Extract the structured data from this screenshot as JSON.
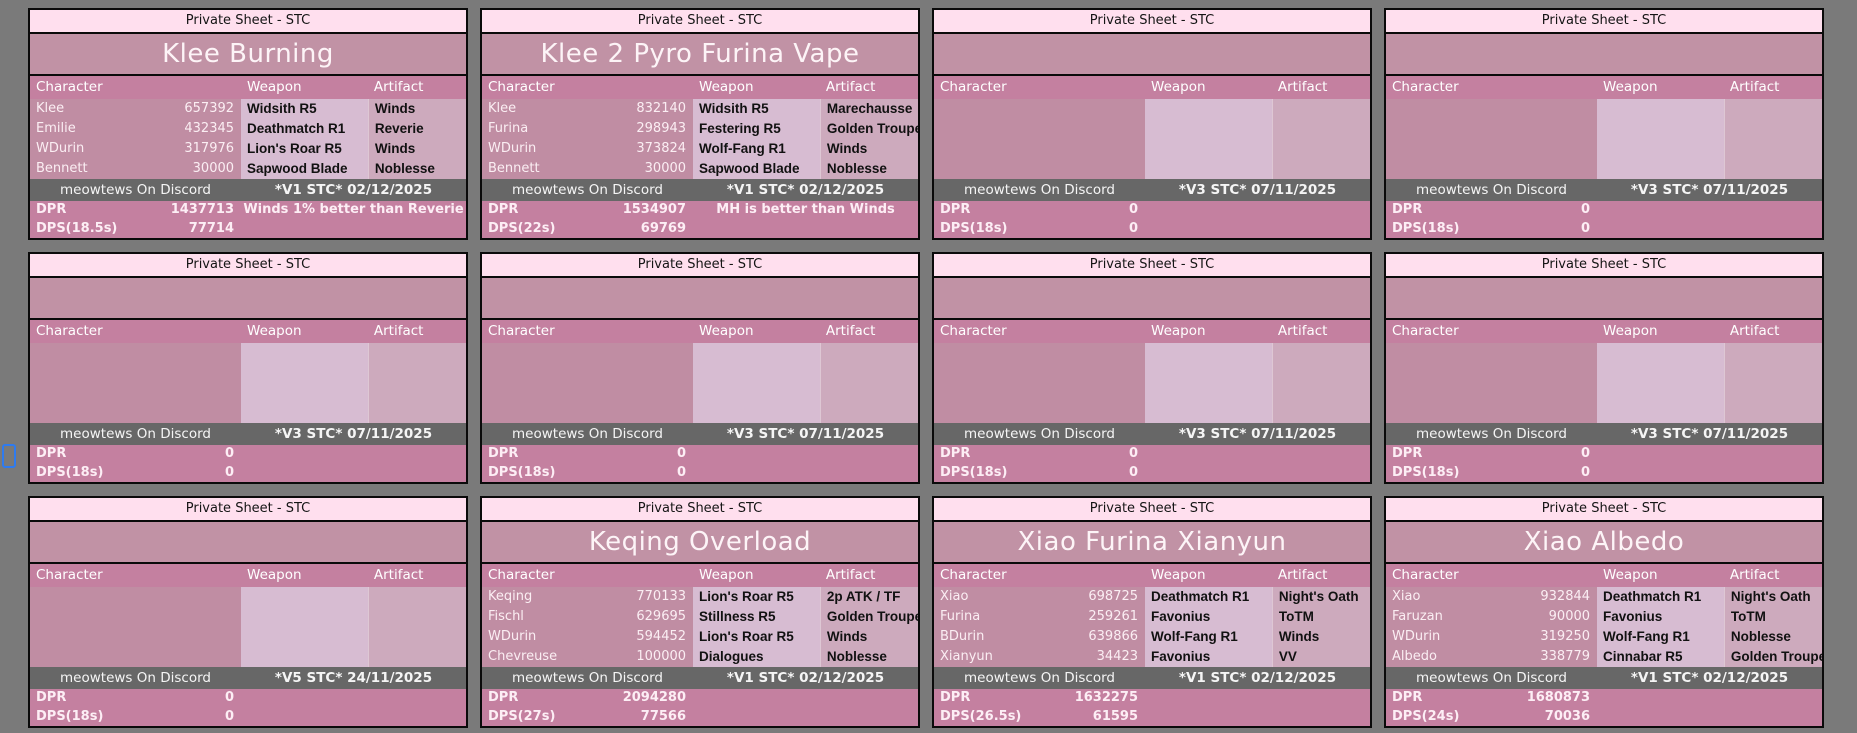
{
  "colors": {
    "bg": "#7a7a7a",
    "line": "#0a0a0a",
    "topbar": "#ffdfee",
    "titlebg": "#c192a5",
    "pinkstrong": "#c480a0",
    "charcol": "#c08da3",
    "weaponcol": "#d7bcd2",
    "artifactcol": "#cdaabd",
    "footerbg": "#676767",
    "cursor": "#2e7bf0"
  },
  "labels": {
    "sheet_header": "Private Sheet - STC",
    "col_character": "Character",
    "col_weapon": "Weapon",
    "col_artifact": "Artifact",
    "footer_left": "meowtews On Discord",
    "dpr_label": "DPR"
  },
  "cards": [
    {
      "title": "Klee Burning",
      "rows": [
        {
          "name": "Klee",
          "value": "657392",
          "weapon": "Widsith R5",
          "artifact": "Winds"
        },
        {
          "name": "Emilie",
          "value": "432345",
          "weapon": "Deathmatch R1",
          "artifact": "Reverie"
        },
        {
          "name": "WDurin",
          "value": "317976",
          "weapon": "Lion's Roar R5",
          "artifact": "Winds"
        },
        {
          "name": "Bennett",
          "value": "30000",
          "weapon": "Sapwood Blade",
          "artifact": "Noblesse"
        }
      ],
      "version": "*V1 STC* 02/12/2025",
      "dpr": "1437713",
      "dpr_note": "Winds 1% better than Reverie",
      "dps_label": "DPS(18.5s)",
      "dps": "77714"
    },
    {
      "title": "Klee 2 Pyro Furina Vape",
      "rows": [
        {
          "name": "Klee",
          "value": "832140",
          "weapon": "Widsith R5",
          "artifact": "Marechausse"
        },
        {
          "name": "Furina",
          "value": "298943",
          "weapon": "Festering R5",
          "artifact": "Golden Troupe"
        },
        {
          "name": "WDurin",
          "value": "373824",
          "weapon": "Wolf-Fang R1",
          "artifact": "Winds"
        },
        {
          "name": "Bennett",
          "value": "30000",
          "weapon": "Sapwood Blade",
          "artifact": "Noblesse"
        }
      ],
      "version": "*V1 STC* 02/12/2025",
      "dpr": "1534907",
      "dpr_note": "MH is better than Winds",
      "dps_label": "DPS(22s)",
      "dps": "69769"
    },
    {
      "title": "",
      "rows": [
        {
          "name": "",
          "value": "",
          "weapon": "",
          "artifact": ""
        },
        {
          "name": "",
          "value": "",
          "weapon": "",
          "artifact": ""
        },
        {
          "name": "",
          "value": "",
          "weapon": "",
          "artifact": ""
        },
        {
          "name": "",
          "value": "",
          "weapon": "",
          "artifact": ""
        }
      ],
      "version": "*V3 STC* 07/11/2025",
      "dpr": "0",
      "dpr_note": "",
      "dps_label": "DPS(18s)",
      "dps": "0"
    },
    {
      "title": "",
      "rows": [
        {
          "name": "",
          "value": "",
          "weapon": "",
          "artifact": ""
        },
        {
          "name": "",
          "value": "",
          "weapon": "",
          "artifact": ""
        },
        {
          "name": "",
          "value": "",
          "weapon": "",
          "artifact": ""
        },
        {
          "name": "",
          "value": "",
          "weapon": "",
          "artifact": ""
        }
      ],
      "version": "*V3 STC* 07/11/2025",
      "dpr": "0",
      "dpr_note": "",
      "dps_label": "DPS(18s)",
      "dps": "0"
    },
    {
      "title": "",
      "rows": [
        {
          "name": "",
          "value": "",
          "weapon": "",
          "artifact": ""
        },
        {
          "name": "",
          "value": "",
          "weapon": "",
          "artifact": ""
        },
        {
          "name": "",
          "value": "",
          "weapon": "",
          "artifact": ""
        },
        {
          "name": "",
          "value": "",
          "weapon": "",
          "artifact": ""
        }
      ],
      "version": "*V3 STC* 07/11/2025",
      "dpr": "0",
      "dpr_note": "",
      "dps_label": "DPS(18s)",
      "dps": "0"
    },
    {
      "title": "",
      "rows": [
        {
          "name": "",
          "value": "",
          "weapon": "",
          "artifact": ""
        },
        {
          "name": "",
          "value": "",
          "weapon": "",
          "artifact": ""
        },
        {
          "name": "",
          "value": "",
          "weapon": "",
          "artifact": ""
        },
        {
          "name": "",
          "value": "",
          "weapon": "",
          "artifact": ""
        }
      ],
      "version": "*V3 STC* 07/11/2025",
      "dpr": "0",
      "dpr_note": "",
      "dps_label": "DPS(18s)",
      "dps": "0"
    },
    {
      "title": "",
      "rows": [
        {
          "name": "",
          "value": "",
          "weapon": "",
          "artifact": ""
        },
        {
          "name": "",
          "value": "",
          "weapon": "",
          "artifact": ""
        },
        {
          "name": "",
          "value": "",
          "weapon": "",
          "artifact": ""
        },
        {
          "name": "",
          "value": "",
          "weapon": "",
          "artifact": ""
        }
      ],
      "version": "*V3 STC* 07/11/2025",
      "dpr": "0",
      "dpr_note": "",
      "dps_label": "DPS(18s)",
      "dps": "0"
    },
    {
      "title": "",
      "rows": [
        {
          "name": "",
          "value": "",
          "weapon": "",
          "artifact": ""
        },
        {
          "name": "",
          "value": "",
          "weapon": "",
          "artifact": ""
        },
        {
          "name": "",
          "value": "",
          "weapon": "",
          "artifact": ""
        },
        {
          "name": "",
          "value": "",
          "weapon": "",
          "artifact": ""
        }
      ],
      "version": "*V3 STC* 07/11/2025",
      "dpr": "0",
      "dpr_note": "",
      "dps_label": "DPS(18s)",
      "dps": "0"
    },
    {
      "title": "",
      "rows": [
        {
          "name": "",
          "value": "",
          "weapon": "",
          "artifact": ""
        },
        {
          "name": "",
          "value": "",
          "weapon": "",
          "artifact": ""
        },
        {
          "name": "",
          "value": "",
          "weapon": "",
          "artifact": ""
        },
        {
          "name": "",
          "value": "",
          "weapon": "",
          "artifact": ""
        }
      ],
      "version": "*V5 STC* 24/11/2025",
      "dpr": "0",
      "dpr_note": "",
      "dps_label": "DPS(18s)",
      "dps": "0"
    },
    {
      "title": "Keqing Overload",
      "rows": [
        {
          "name": "Keqing",
          "value": "770133",
          "weapon": "Lion's Roar R5",
          "artifact": "2p ATK / TF"
        },
        {
          "name": "Fischl",
          "value": "629695",
          "weapon": "Stillness R5",
          "artifact": "Golden Troupe"
        },
        {
          "name": "WDurin",
          "value": "594452",
          "weapon": "Lion's Roar R5",
          "artifact": "Winds"
        },
        {
          "name": "Chevreuse",
          "value": "100000",
          "weapon": "Dialogues",
          "artifact": "Noblesse"
        }
      ],
      "version": "*V1 STC* 02/12/2025",
      "dpr": "2094280",
      "dpr_note": "",
      "dps_label": "DPS(27s)",
      "dps": "77566"
    },
    {
      "title": "Xiao Furina Xianyun",
      "rows": [
        {
          "name": "Xiao",
          "value": "698725",
          "weapon": "Deathmatch R1",
          "artifact": "Night's Oath"
        },
        {
          "name": "Furina",
          "value": "259261",
          "weapon": "Favonius",
          "artifact": "ToTM"
        },
        {
          "name": "BDurin",
          "value": "639866",
          "weapon": "Wolf-Fang R1",
          "artifact": "Winds"
        },
        {
          "name": "Xianyun",
          "value": "34423",
          "weapon": "Favonius",
          "artifact": "VV"
        }
      ],
      "version": "*V1 STC* 02/12/2025",
      "dpr": "1632275",
      "dpr_note": "",
      "dps_label": "DPS(26.5s)",
      "dps": "61595"
    },
    {
      "title": "Xiao Albedo",
      "rows": [
        {
          "name": "Xiao",
          "value": "932844",
          "weapon": "Deathmatch R1",
          "artifact": "Night's Oath"
        },
        {
          "name": "Faruzan",
          "value": "90000",
          "weapon": "Favonius",
          "artifact": "ToTM"
        },
        {
          "name": "WDurin",
          "value": "319250",
          "weapon": "Wolf-Fang R1",
          "artifact": "Noblesse"
        },
        {
          "name": "Albedo",
          "value": "338779",
          "weapon": "Cinnabar R5",
          "artifact": "Golden Troupe"
        }
      ],
      "version": "*V1 STC* 02/12/2025",
      "dpr": "1680873",
      "dpr_note": "",
      "dps_label": "DPS(24s)",
      "dps": "70036"
    }
  ]
}
